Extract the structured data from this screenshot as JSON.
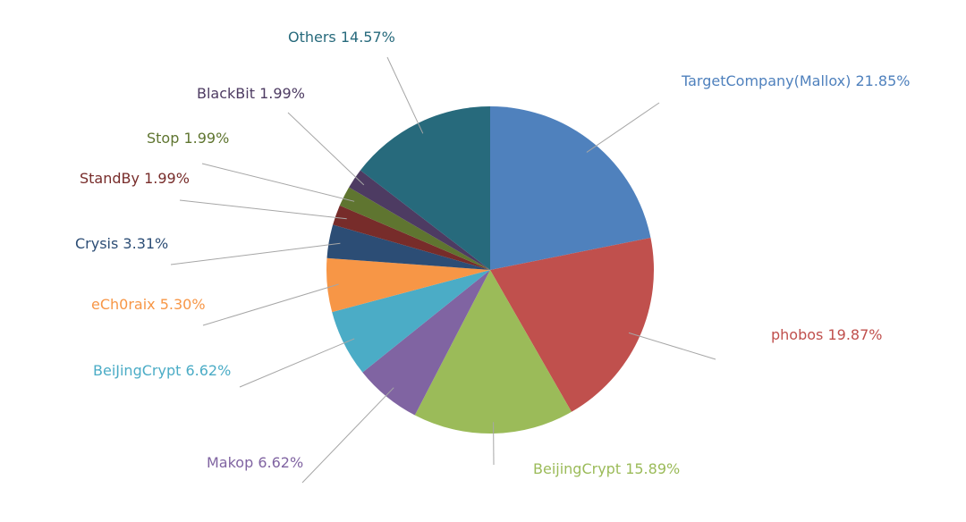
{
  "chart_data": {
    "type": "pie",
    "title": "",
    "slices": [
      {
        "name": "TargetCompany(Mallox)",
        "value": 21.85,
        "label": "TargetCompany(Mallox) 21.85%",
        "color": "#4f81bd"
      },
      {
        "name": "phobos",
        "value": 19.87,
        "label": "phobos 19.87%",
        "color": "#c0504d"
      },
      {
        "name": "BeijingCrypt",
        "value": 15.89,
        "label": "BeijingCrypt 15.89%",
        "color": "#9bbb59"
      },
      {
        "name": "Makop",
        "value": 6.62,
        "label": "Makop 6.62%",
        "color": "#8064a2"
      },
      {
        "name": "BeiJingCrypt",
        "value": 6.62,
        "label": "BeiJingCrypt 6.62%",
        "color": "#4bacc6"
      },
      {
        "name": "eCh0raix",
        "value": 5.3,
        "label": "eCh0raix 5.30%",
        "color": "#f79646"
      },
      {
        "name": "Crysis",
        "value": 3.31,
        "label": "Crysis 3.31%",
        "color": "#2c4d75"
      },
      {
        "name": "StandBy",
        "value": 1.99,
        "label": "StandBy 1.99%",
        "color": "#772c2a"
      },
      {
        "name": "Stop",
        "value": 1.99,
        "label": "Stop 1.99%",
        "color": "#5f7530"
      },
      {
        "name": "BlackBit",
        "value": 1.99,
        "label": "BlackBit 1.99%",
        "color": "#4d3b62"
      },
      {
        "name": "Others",
        "value": 14.57,
        "label": "Others 14.57%",
        "color": "#276a7c"
      }
    ],
    "start_angle": "12 o'clock",
    "direction": "clockwise",
    "labels": "outside with leader lines",
    "legend": "none"
  }
}
